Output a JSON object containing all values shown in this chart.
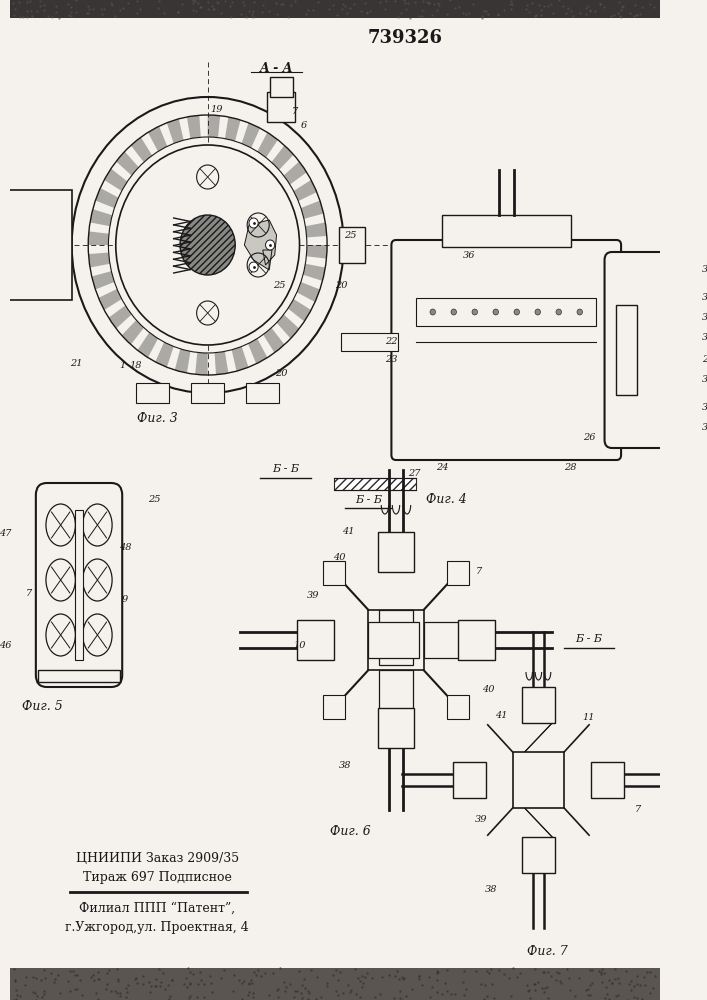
{
  "patent_number": "739326",
  "bg_color": "#f0ede8",
  "paper_color": "#f5f2ed",
  "line_color": "#1a1818",
  "hatch_color": "#2a2828",
  "label_AA": "A - A",
  "label_BB": "Б - Б",
  "fig3_label": "Фиг. 3",
  "fig4_label": "Фиг. 4",
  "fig5_label": "Фиг. 5",
  "fig6_label": "Фиг. 6",
  "fig7_label": "Фиг. 7",
  "bottom1": "ЦНИИПИ Заказ 2909/35",
  "bottom2": "Тираж 697 Подписное",
  "bottom3": "Филиал ППП “Патент”,",
  "bottom4": "г.Ужгород,ул. Проектная, 4"
}
